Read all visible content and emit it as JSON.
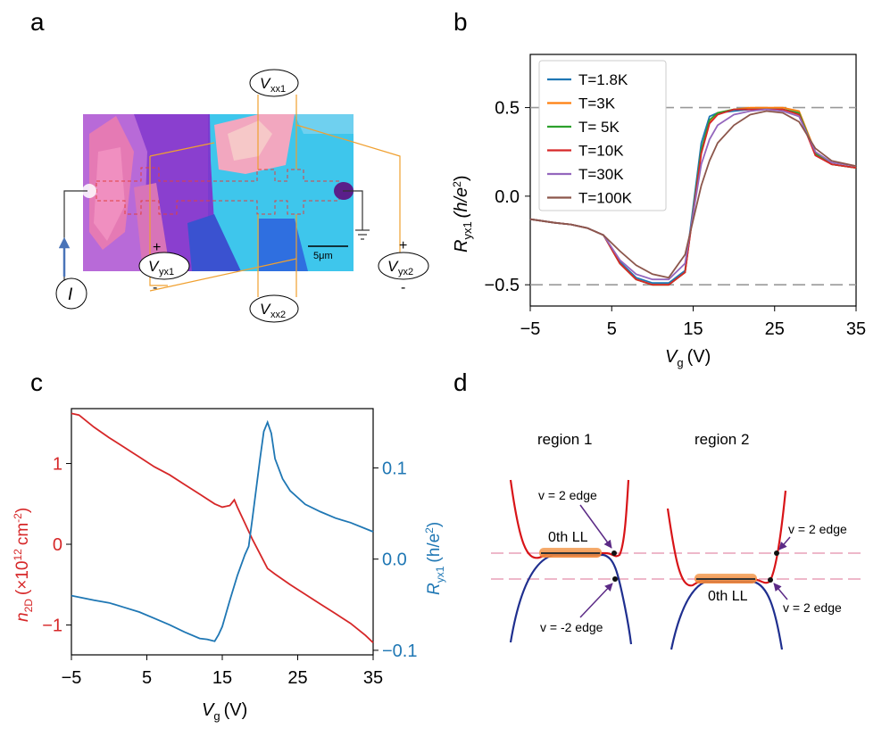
{
  "panels": {
    "a": {
      "letter": "a",
      "labels": {
        "vxx1": "V",
        "vxx1_sub": "xx1",
        "vxx2": "V",
        "vxx2_sub": "xx2",
        "vyx1": "V",
        "vyx1_sub": "yx1",
        "vyx2": "V",
        "vyx2_sub": "yx2",
        "current": "I",
        "plus": "+",
        "minus": "-",
        "scalebar": "5μm"
      }
    },
    "b": {
      "letter": "b"
    },
    "c": {
      "letter": "c"
    },
    "d": {
      "letter": "d",
      "region1": "region 1",
      "region2": "region 2",
      "r1_upper_label": "v = 2 edge",
      "r1_lower_label": "v = -2 edge",
      "r1_ll_label": "0th LL",
      "r2_upper_label": "v = 2 edge",
      "r2_lower_label": "v = 2 edge",
      "r2_ll_label": "0th LL"
    }
  },
  "colors": {
    "blue": "#1f77b4",
    "orange": "#ff7f0e",
    "green": "#2ca02c",
    "red": "#d62728",
    "purple": "#9467bd",
    "brown": "#8c564b",
    "band_red": "#d81418",
    "band_blue": "#1f2f8f",
    "edge_arrow": "#5b2a86"
  },
  "chart_data": [
    {
      "panel": "b",
      "type": "line",
      "xlabel": "V",
      "xlabel_sub": "g",
      "xlabel_unit": "(V)",
      "ylabel": "R",
      "ylabel_sub": "yx1",
      "ylabel_unit": "(h/e",
      "ylabel_sup": "2",
      "ylabel_close": ")",
      "xlim": [
        -5,
        35
      ],
      "ylim": [
        -0.62,
        0.8
      ],
      "xticks": [
        -5,
        5,
        15,
        25,
        35
      ],
      "xtick_labels": [
        "−5",
        "5",
        "15",
        "25",
        "35"
      ],
      "yticks": [
        -0.5,
        0.0,
        0.5
      ],
      "ytick_labels": [
        "−0.5",
        "0.0",
        "0.5"
      ],
      "reference_lines": [
        0.5,
        -0.5
      ],
      "legend_position": "top-left",
      "x": [
        -5,
        -2,
        0,
        2,
        4,
        6,
        8,
        10,
        12,
        14,
        16,
        17,
        18,
        20,
        22,
        24,
        26,
        28,
        30,
        32,
        35
      ],
      "series": [
        {
          "name": "T=1.8K",
          "color": "#1f77b4",
          "values": [
            -0.13,
            -0.15,
            -0.16,
            -0.18,
            -0.22,
            -0.37,
            -0.46,
            -0.49,
            -0.49,
            -0.42,
            0.3,
            0.45,
            0.47,
            0.48,
            0.49,
            0.49,
            0.49,
            0.47,
            0.24,
            0.18,
            0.16
          ]
        },
        {
          "name": "T=3K",
          "color": "#ff7f0e",
          "values": [
            -0.13,
            -0.15,
            -0.16,
            -0.18,
            -0.22,
            -0.38,
            -0.47,
            -0.5,
            -0.5,
            -0.43,
            0.25,
            0.42,
            0.47,
            0.49,
            0.5,
            0.5,
            0.5,
            0.48,
            0.25,
            0.18,
            0.16
          ]
        },
        {
          "name": "T= 5K",
          "color": "#2ca02c",
          "values": [
            -0.13,
            -0.15,
            -0.16,
            -0.18,
            -0.22,
            -0.38,
            -0.47,
            -0.5,
            -0.5,
            -0.43,
            0.26,
            0.43,
            0.47,
            0.49,
            0.49,
            0.49,
            0.49,
            0.47,
            0.24,
            0.18,
            0.16
          ]
        },
        {
          "name": "T=10K",
          "color": "#d62728",
          "values": [
            -0.13,
            -0.15,
            -0.16,
            -0.18,
            -0.22,
            -0.38,
            -0.47,
            -0.5,
            -0.5,
            -0.43,
            0.24,
            0.41,
            0.46,
            0.49,
            0.49,
            0.49,
            0.49,
            0.46,
            0.23,
            0.18,
            0.16
          ]
        },
        {
          "name": "T=30K",
          "color": "#9467bd",
          "values": [
            -0.13,
            -0.15,
            -0.16,
            -0.18,
            -0.22,
            -0.36,
            -0.44,
            -0.47,
            -0.47,
            -0.38,
            0.18,
            0.32,
            0.4,
            0.46,
            0.48,
            0.49,
            0.48,
            0.45,
            0.25,
            0.19,
            0.17
          ]
        },
        {
          "name": "T=100K",
          "color": "#8c564b",
          "values": [
            -0.13,
            -0.15,
            -0.16,
            -0.18,
            -0.22,
            -0.31,
            -0.39,
            -0.44,
            -0.46,
            -0.33,
            0.06,
            0.2,
            0.3,
            0.4,
            0.46,
            0.48,
            0.47,
            0.42,
            0.27,
            0.2,
            0.17
          ]
        }
      ]
    },
    {
      "panel": "c",
      "type": "line",
      "xlabel": "V",
      "xlabel_sub": "g",
      "xlabel_unit": "(V)",
      "xlim": [
        -5,
        35
      ],
      "xticks": [
        -5,
        5,
        15,
        25,
        35
      ],
      "xtick_labels": [
        "−5",
        "5",
        "15",
        "25",
        "35"
      ],
      "left_axis": {
        "label": "n",
        "label_sub": "2D",
        "label_unit": "(×10",
        "label_sup": "12",
        "label_tail": "cm",
        "label_sup2": "-2",
        "label_close": ")",
        "ylim": [
          -1.37,
          1.68
        ],
        "ticks": [
          -1,
          0,
          1
        ],
        "tick_labels": [
          "−1",
          "0",
          "1"
        ],
        "color": "#d62728"
      },
      "right_axis": {
        "label": "R",
        "label_sub": "yx1",
        "label_unit": "(h/e",
        "label_sup": "2",
        "label_close": ")",
        "ylim": [
          -0.105,
          0.165
        ],
        "ticks": [
          -0.1,
          0.0,
          0.1
        ],
        "tick_labels": [
          "−0.1",
          "0.0",
          "0.1"
        ],
        "color": "#1f77b4"
      },
      "series": [
        {
          "name": "n2D",
          "axis": "left",
          "color": "#d62728",
          "x": [
            -5,
            -4,
            -2,
            0,
            2,
            4,
            6,
            8,
            10,
            12,
            14,
            15,
            16,
            16.6,
            17,
            18,
            19,
            20,
            21,
            22,
            24,
            26,
            28,
            30,
            32,
            34,
            35
          ],
          "values": [
            1.62,
            1.6,
            1.45,
            1.32,
            1.2,
            1.08,
            0.96,
            0.86,
            0.74,
            0.62,
            0.5,
            0.46,
            0.48,
            0.55,
            0.46,
            0.26,
            0.06,
            -0.12,
            -0.3,
            -0.37,
            -0.5,
            -0.62,
            -0.74,
            -0.86,
            -0.98,
            -1.13,
            -1.22
          ]
        },
        {
          "name": "Ryx1",
          "axis": "right",
          "color": "#1f77b4",
          "x": [
            -5,
            -2,
            0,
            2,
            4,
            6,
            8,
            10,
            12,
            13,
            14,
            14.5,
            15,
            16,
            17,
            18,
            18.5,
            19,
            20,
            20.5,
            21,
            21.5,
            22,
            23,
            24,
            26,
            28,
            30,
            32,
            35
          ],
          "values": [
            -0.04,
            -0.045,
            -0.048,
            -0.053,
            -0.058,
            -0.065,
            -0.072,
            -0.08,
            -0.087,
            -0.088,
            -0.09,
            -0.083,
            -0.074,
            -0.045,
            -0.018,
            0.005,
            0.014,
            0.045,
            0.11,
            0.14,
            0.15,
            0.138,
            0.11,
            0.088,
            0.075,
            0.06,
            0.052,
            0.045,
            0.04,
            0.03
          ]
        }
      ]
    }
  ]
}
